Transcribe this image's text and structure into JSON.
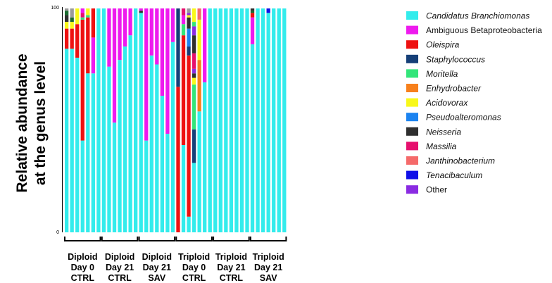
{
  "chart_data": {
    "type": "bar",
    "stacked": true,
    "normalized_to": 100,
    "ylabel_lines": [
      "Relative abundance",
      "at the genus level"
    ],
    "yticks": [
      0,
      100
    ],
    "ylim": [
      0,
      100
    ],
    "groups": [
      {
        "lines": [
          "Diploid",
          "Day 0",
          "CTRL"
        ],
        "bars": 7
      },
      {
        "lines": [
          "Diploid",
          "Day 21",
          "CTRL"
        ],
        "bars": 7
      },
      {
        "lines": [
          "Diploid",
          "Day 21",
          "SAV"
        ],
        "bars": 7
      },
      {
        "lines": [
          "Triploid",
          "Day 0",
          "CTRL"
        ],
        "bars": 7
      },
      {
        "lines": [
          "Triploid",
          "Day 21",
          "CTRL"
        ],
        "bars": 7
      },
      {
        "lines": [
          "Triploid",
          "Day 21",
          "SAV"
        ],
        "bars": 7
      }
    ],
    "legend": [
      {
        "name": "Candidatus Branchiomonas",
        "color": "#33ecec",
        "italic": true
      },
      {
        "name": "Ambiguous Betaproteobacteria",
        "color": "#ee1aee",
        "italic": false
      },
      {
        "name": "Oleispira",
        "color": "#ee1111",
        "italic": true
      },
      {
        "name": "Staphylococcus",
        "color": "#163f78",
        "italic": true
      },
      {
        "name": "Moritella",
        "color": "#33e57a",
        "italic": true
      },
      {
        "name": "Enhydrobacter",
        "color": "#f7801c",
        "italic": true
      },
      {
        "name": "Acidovorax",
        "color": "#f8f81a",
        "italic": true
      },
      {
        "name": "Pseudoalteromonas",
        "color": "#1b83f0",
        "italic": true
      },
      {
        "name": "Neisseria",
        "color": "#2f2f2f",
        "italic": true
      },
      {
        "name": "Massilia",
        "color": "#e6106e",
        "italic": true
      },
      {
        "name": "Janthinobacterium",
        "color": "#f56a6a",
        "italic": true
      },
      {
        "name": "Tenacibaculum",
        "color": "#1010e8",
        "italic": true
      },
      {
        "name": "Other",
        "color": "#8a2be2",
        "italic": false
      }
    ],
    "extra_colors": {
      "grey": "#9a9a9a",
      "darkgreen": "#1a6b30"
    },
    "samples": [
      [
        [
          0,
          82
        ],
        [
          2,
          9
        ],
        [
          6,
          3
        ],
        [
          8,
          3
        ],
        [
          12,
          0
        ],
        [
          "darkgreen",
          2
        ],
        [
          "grey",
          1
        ]
      ],
      [
        [
          0,
          82
        ],
        [
          2,
          9
        ],
        [
          6,
          3
        ],
        [
          "darkgreen",
          2
        ],
        [
          "grey",
          4
        ]
      ],
      [
        [
          0,
          78
        ],
        [
          2,
          15
        ],
        [
          6,
          7
        ]
      ],
      [
        [
          0,
          41
        ],
        [
          2,
          54
        ],
        [
          4,
          1
        ],
        [
          9,
          2
        ],
        [
          1,
          2
        ]
      ],
      [
        [
          0,
          71
        ],
        [
          2,
          25
        ],
        [
          4,
          1
        ],
        [
          6,
          3
        ]
      ],
      [
        [
          0,
          71
        ],
        [
          1,
          16
        ],
        [
          2,
          13
        ]
      ],
      [
        [
          0,
          100
        ]
      ],
      [
        [
          0,
          100
        ]
      ],
      [
        [
          0,
          74
        ],
        [
          1,
          26
        ]
      ],
      [
        [
          0,
          49
        ],
        [
          1,
          51
        ]
      ],
      [
        [
          0,
          77
        ],
        [
          1,
          23
        ]
      ],
      [
        [
          0,
          83
        ],
        [
          1,
          17
        ]
      ],
      [
        [
          0,
          88
        ],
        [
          1,
          12
        ]
      ],
      [
        [
          0,
          100
        ]
      ],
      [
        [
          0,
          98
        ],
        [
          8,
          1
        ],
        [
          1,
          1
        ]
      ],
      [
        [
          0,
          41
        ],
        [
          1,
          59
        ]
      ],
      [
        [
          0,
          79
        ],
        [
          1,
          21
        ]
      ],
      [
        [
          0,
          75
        ],
        [
          1,
          25
        ]
      ],
      [
        [
          0,
          61
        ],
        [
          1,
          39
        ]
      ],
      [
        [
          0,
          44
        ],
        [
          1,
          56
        ]
      ],
      [
        [
          0,
          85
        ],
        [
          1,
          15
        ]
      ],
      [
        [
          2,
          65
        ],
        [
          3,
          35
        ]
      ],
      [
        [
          0,
          39
        ],
        [
          2,
          49
        ],
        [
          4,
          5
        ],
        [
          1,
          4
        ],
        [
          9,
          3
        ]
      ],
      [
        [
          0,
          7
        ],
        [
          2,
          72
        ],
        [
          3,
          4
        ],
        [
          7,
          8
        ],
        [
          8,
          5
        ],
        [
          6,
          1
        ],
        [
          12,
          1
        ],
        [
          "grey",
          2
        ]
      ],
      [
        [
          0,
          31
        ],
        [
          3,
          15
        ],
        [
          4,
          20
        ],
        [
          6,
          3
        ],
        [
          8,
          2
        ],
        [
          12,
          2
        ],
        [
          9,
          7
        ],
        [
          8,
          8
        ],
        [
          12,
          4
        ],
        [
          4,
          2
        ],
        [
          6,
          6
        ]
      ],
      [
        [
          0,
          54
        ],
        [
          5,
          23
        ],
        [
          6,
          18
        ],
        [
          10,
          5
        ]
      ],
      [
        [
          0,
          67
        ],
        [
          1,
          33
        ]
      ],
      [
        [
          0,
          100
        ]
      ],
      [
        [
          0,
          100
        ]
      ],
      [
        [
          0,
          100
        ]
      ],
      [
        [
          0,
          100
        ]
      ],
      [
        [
          0,
          100
        ]
      ],
      [
        [
          0,
          100
        ]
      ],
      [
        [
          0,
          100
        ]
      ],
      [
        [
          0,
          100
        ]
      ],
      [
        [
          0,
          84
        ],
        [
          1,
          12
        ],
        [
          2,
          2
        ],
        [
          "darkgreen",
          1
        ],
        [
          8,
          1
        ]
      ],
      [
        [
          0,
          100
        ]
      ],
      [
        [
          0,
          100
        ]
      ],
      [
        [
          0,
          98
        ],
        [
          11,
          2
        ]
      ],
      [
        [
          0,
          100
        ]
      ],
      [
        [
          0,
          100
        ]
      ],
      [
        [
          0,
          100
        ]
      ]
    ]
  }
}
